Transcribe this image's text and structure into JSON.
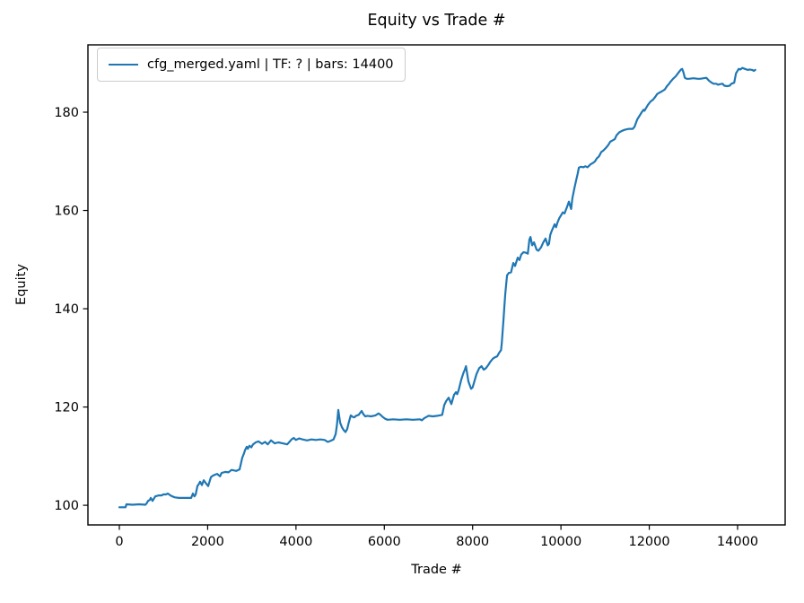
{
  "figure": {
    "title": "Equity vs Trade #",
    "xlabel": "Trade #",
    "ylabel": "Equity",
    "legend": {
      "label": "cfg_merged.yaml | TF: ? | bars: 14400",
      "line_color": "#1f77b4"
    }
  },
  "chart_data": {
    "type": "line",
    "title": "Equity vs Trade #",
    "xlabel": "Trade #",
    "ylabel": "Equity",
    "grid": false,
    "legend_position": "upper left",
    "xlim": [
      -711,
      15077
    ],
    "ylim": [
      96.0,
      193.7
    ],
    "x_ticks": [
      0,
      2000,
      4000,
      6000,
      8000,
      10000,
      12000,
      14000
    ],
    "y_ticks": [
      100,
      120,
      140,
      160,
      180
    ],
    "axis_color": "#000000",
    "series": [
      {
        "name": "cfg_merged.yaml | TF: ? | bars: 14400",
        "color": "#1f77b4",
        "points": [
          [
            0,
            99.6
          ],
          [
            80,
            99.6
          ],
          [
            140,
            99.6
          ],
          [
            160,
            100.2
          ],
          [
            300,
            100.1
          ],
          [
            450,
            100.2
          ],
          [
            590,
            100.1
          ],
          [
            620,
            100.4
          ],
          [
            650,
            100.9
          ],
          [
            691,
            101.1
          ],
          [
            711,
            101.5
          ],
          [
            752,
            100.9
          ],
          [
            793,
            101.5
          ],
          [
            813,
            101.8
          ],
          [
            850,
            101.9
          ],
          [
            894,
            102.0
          ],
          [
            955,
            102.0
          ],
          [
            996,
            102.2
          ],
          [
            1057,
            102.2
          ],
          [
            1098,
            102.4
          ],
          [
            1159,
            102.0
          ],
          [
            1199,
            101.8
          ],
          [
            1260,
            101.6
          ],
          [
            1350,
            101.5
          ],
          [
            1450,
            101.5
          ],
          [
            1565,
            101.5
          ],
          [
            1626,
            101.5
          ],
          [
            1666,
            102.4
          ],
          [
            1700,
            101.8
          ],
          [
            1730,
            102.2
          ],
          [
            1768,
            103.9
          ],
          [
            1800,
            104.3
          ],
          [
            1829,
            104.8
          ],
          [
            1870,
            104.1
          ],
          [
            1910,
            105.1
          ],
          [
            1950,
            104.6
          ],
          [
            2012,
            103.9
          ],
          [
            2073,
            105.7
          ],
          [
            2114,
            106.0
          ],
          [
            2160,
            106.2
          ],
          [
            2215,
            106.4
          ],
          [
            2280,
            105.9
          ],
          [
            2317,
            106.6
          ],
          [
            2400,
            106.8
          ],
          [
            2470,
            106.7
          ],
          [
            2540,
            107.2
          ],
          [
            2650,
            107.0
          ],
          [
            2723,
            107.3
          ],
          [
            2784,
            109.7
          ],
          [
            2825,
            110.6
          ],
          [
            2845,
            111.2
          ],
          [
            2886,
            111.9
          ],
          [
            2910,
            111.5
          ],
          [
            2947,
            112.1
          ],
          [
            2990,
            111.8
          ],
          [
            3028,
            112.4
          ],
          [
            3089,
            112.8
          ],
          [
            3150,
            113.0
          ],
          [
            3230,
            112.5
          ],
          [
            3300,
            112.9
          ],
          [
            3360,
            112.4
          ],
          [
            3435,
            113.2
          ],
          [
            3520,
            112.6
          ],
          [
            3600,
            112.8
          ],
          [
            3700,
            112.6
          ],
          [
            3800,
            112.4
          ],
          [
            3850,
            112.9
          ],
          [
            3900,
            113.4
          ],
          [
            3950,
            113.7
          ],
          [
            4000,
            113.3
          ],
          [
            4070,
            113.6
          ],
          [
            4150,
            113.4
          ],
          [
            4250,
            113.2
          ],
          [
            4350,
            113.4
          ],
          [
            4450,
            113.3
          ],
          [
            4550,
            113.4
          ],
          [
            4650,
            113.3
          ],
          [
            4720,
            112.9
          ],
          [
            4780,
            113.1
          ],
          [
            4850,
            113.4
          ],
          [
            4900,
            114.5
          ],
          [
            4930,
            116.5
          ],
          [
            4958,
            119.4
          ],
          [
            4980,
            118.0
          ],
          [
            5000,
            116.8
          ],
          [
            5040,
            115.9
          ],
          [
            5080,
            115.3
          ],
          [
            5120,
            114.9
          ],
          [
            5160,
            115.5
          ],
          [
            5200,
            117.0
          ],
          [
            5240,
            118.3
          ],
          [
            5280,
            118.0
          ],
          [
            5320,
            117.9
          ],
          [
            5360,
            118.2
          ],
          [
            5420,
            118.4
          ],
          [
            5487,
            119.2
          ],
          [
            5530,
            118.5
          ],
          [
            5570,
            118.1
          ],
          [
            5620,
            118.2
          ],
          [
            5700,
            118.1
          ],
          [
            5800,
            118.3
          ],
          [
            5870,
            118.7
          ],
          [
            5914,
            118.4
          ],
          [
            5960,
            118.0
          ],
          [
            6020,
            117.6
          ],
          [
            6076,
            117.4
          ],
          [
            6200,
            117.5
          ],
          [
            6350,
            117.4
          ],
          [
            6500,
            117.5
          ],
          [
            6650,
            117.4
          ],
          [
            6800,
            117.5
          ],
          [
            6850,
            117.3
          ],
          [
            6900,
            117.7
          ],
          [
            7000,
            118.2
          ],
          [
            7100,
            118.1
          ],
          [
            7200,
            118.2
          ],
          [
            7310,
            118.4
          ],
          [
            7357,
            120.4
          ],
          [
            7400,
            121.2
          ],
          [
            7458,
            121.9
          ],
          [
            7519,
            120.6
          ],
          [
            7580,
            122.5
          ],
          [
            7621,
            123.0
          ],
          [
            7650,
            122.6
          ],
          [
            7682,
            123.4
          ],
          [
            7743,
            125.6
          ],
          [
            7790,
            126.9
          ],
          [
            7824,
            127.6
          ],
          [
            7850,
            128.3
          ],
          [
            7905,
            125.2
          ],
          [
            7966,
            123.7
          ],
          [
            8000,
            124.0
          ],
          [
            8027,
            124.8
          ],
          [
            8088,
            126.7
          ],
          [
            8149,
            127.9
          ],
          [
            8200,
            128.3
          ],
          [
            8251,
            127.6
          ],
          [
            8300,
            127.9
          ],
          [
            8352,
            128.5
          ],
          [
            8400,
            129.2
          ],
          [
            8454,
            129.8
          ],
          [
            8500,
            130.1
          ],
          [
            8555,
            130.3
          ],
          [
            8600,
            131.0
          ],
          [
            8643,
            131.6
          ],
          [
            8660,
            133.0
          ],
          [
            8680,
            135.5
          ],
          [
            8700,
            138.0
          ],
          [
            8720,
            140.5
          ],
          [
            8740,
            143.0
          ],
          [
            8760,
            145.0
          ],
          [
            8780,
            146.8
          ],
          [
            8820,
            147.3
          ],
          [
            8870,
            147.4
          ],
          [
            8920,
            149.3
          ],
          [
            8960,
            148.7
          ],
          [
            9022,
            150.4
          ],
          [
            9060,
            149.9
          ],
          [
            9100,
            151.0
          ],
          [
            9150,
            151.5
          ],
          [
            9205,
            151.4
          ],
          [
            9250,
            151.2
          ],
          [
            9286,
            154.1
          ],
          [
            9310,
            154.6
          ],
          [
            9350,
            152.9
          ],
          [
            9390,
            153.5
          ],
          [
            9449,
            152.0
          ],
          [
            9490,
            151.8
          ],
          [
            9550,
            152.5
          ],
          [
            9600,
            153.5
          ],
          [
            9652,
            154.3
          ],
          [
            9700,
            152.9
          ],
          [
            9730,
            153.2
          ],
          [
            9757,
            155.0
          ],
          [
            9790,
            155.8
          ],
          [
            9858,
            157.2
          ],
          [
            9890,
            156.6
          ],
          [
            9920,
            157.5
          ],
          [
            9960,
            158.4
          ],
          [
            10041,
            159.6
          ],
          [
            10080,
            159.4
          ],
          [
            10142,
            160.8
          ],
          [
            10180,
            161.8
          ],
          [
            10230,
            160.3
          ],
          [
            10260,
            162.5
          ],
          [
            10305,
            164.5
          ],
          [
            10340,
            166.0
          ],
          [
            10380,
            167.5
          ],
          [
            10406,
            168.7
          ],
          [
            10450,
            168.9
          ],
          [
            10510,
            168.8
          ],
          [
            10549,
            169.0
          ],
          [
            10600,
            168.8
          ],
          [
            10671,
            169.4
          ],
          [
            10730,
            169.7
          ],
          [
            10772,
            170.0
          ],
          [
            10813,
            170.6
          ],
          [
            10860,
            171.0
          ],
          [
            10914,
            171.9
          ],
          [
            10960,
            172.2
          ],
          [
            11016,
            172.7
          ],
          [
            11070,
            173.3
          ],
          [
            11117,
            174.0
          ],
          [
            11180,
            174.3
          ],
          [
            11219,
            174.5
          ],
          [
            11260,
            175.3
          ],
          [
            11320,
            175.9
          ],
          [
            11382,
            176.2
          ],
          [
            11440,
            176.4
          ],
          [
            11483,
            176.5
          ],
          [
            11540,
            176.6
          ],
          [
            11625,
            176.6
          ],
          [
            11666,
            177.0
          ],
          [
            11727,
            178.5
          ],
          [
            11770,
            179.1
          ],
          [
            11829,
            180.0
          ],
          [
            11870,
            180.5
          ],
          [
            11890,
            180.3
          ],
          [
            11931,
            180.9
          ],
          [
            11970,
            181.5
          ],
          [
            12032,
            182.2
          ],
          [
            12080,
            182.5
          ],
          [
            12134,
            183.1
          ],
          [
            12180,
            183.7
          ],
          [
            12236,
            184.0
          ],
          [
            12280,
            184.2
          ],
          [
            12350,
            184.6
          ],
          [
            12400,
            185.3
          ],
          [
            12450,
            185.8
          ],
          [
            12480,
            186.2
          ],
          [
            12540,
            186.8
          ],
          [
            12601,
            187.3
          ],
          [
            12640,
            187.8
          ],
          [
            12683,
            188.3
          ],
          [
            12720,
            188.7
          ],
          [
            12744,
            188.8
          ],
          [
            12770,
            188.2
          ],
          [
            12805,
            187.0
          ],
          [
            12846,
            186.8
          ],
          [
            12900,
            186.8
          ],
          [
            13000,
            186.9
          ],
          [
            13100,
            186.8
          ],
          [
            13150,
            186.8
          ],
          [
            13230,
            186.9
          ],
          [
            13292,
            187.0
          ],
          [
            13353,
            186.4
          ],
          [
            13414,
            186.0
          ],
          [
            13455,
            185.8
          ],
          [
            13516,
            185.8
          ],
          [
            13557,
            185.6
          ],
          [
            13600,
            185.7
          ],
          [
            13659,
            185.8
          ],
          [
            13699,
            185.4
          ],
          [
            13760,
            185.3
          ],
          [
            13821,
            185.4
          ],
          [
            13860,
            185.8
          ],
          [
            13923,
            186.0
          ],
          [
            13964,
            187.9
          ],
          [
            14025,
            188.8
          ],
          [
            14065,
            188.7
          ],
          [
            14106,
            189.0
          ],
          [
            14167,
            188.8
          ],
          [
            14228,
            188.6
          ],
          [
            14270,
            188.7
          ],
          [
            14329,
            188.6
          ],
          [
            14370,
            188.4
          ],
          [
            14400,
            188.6
          ]
        ]
      }
    ]
  }
}
